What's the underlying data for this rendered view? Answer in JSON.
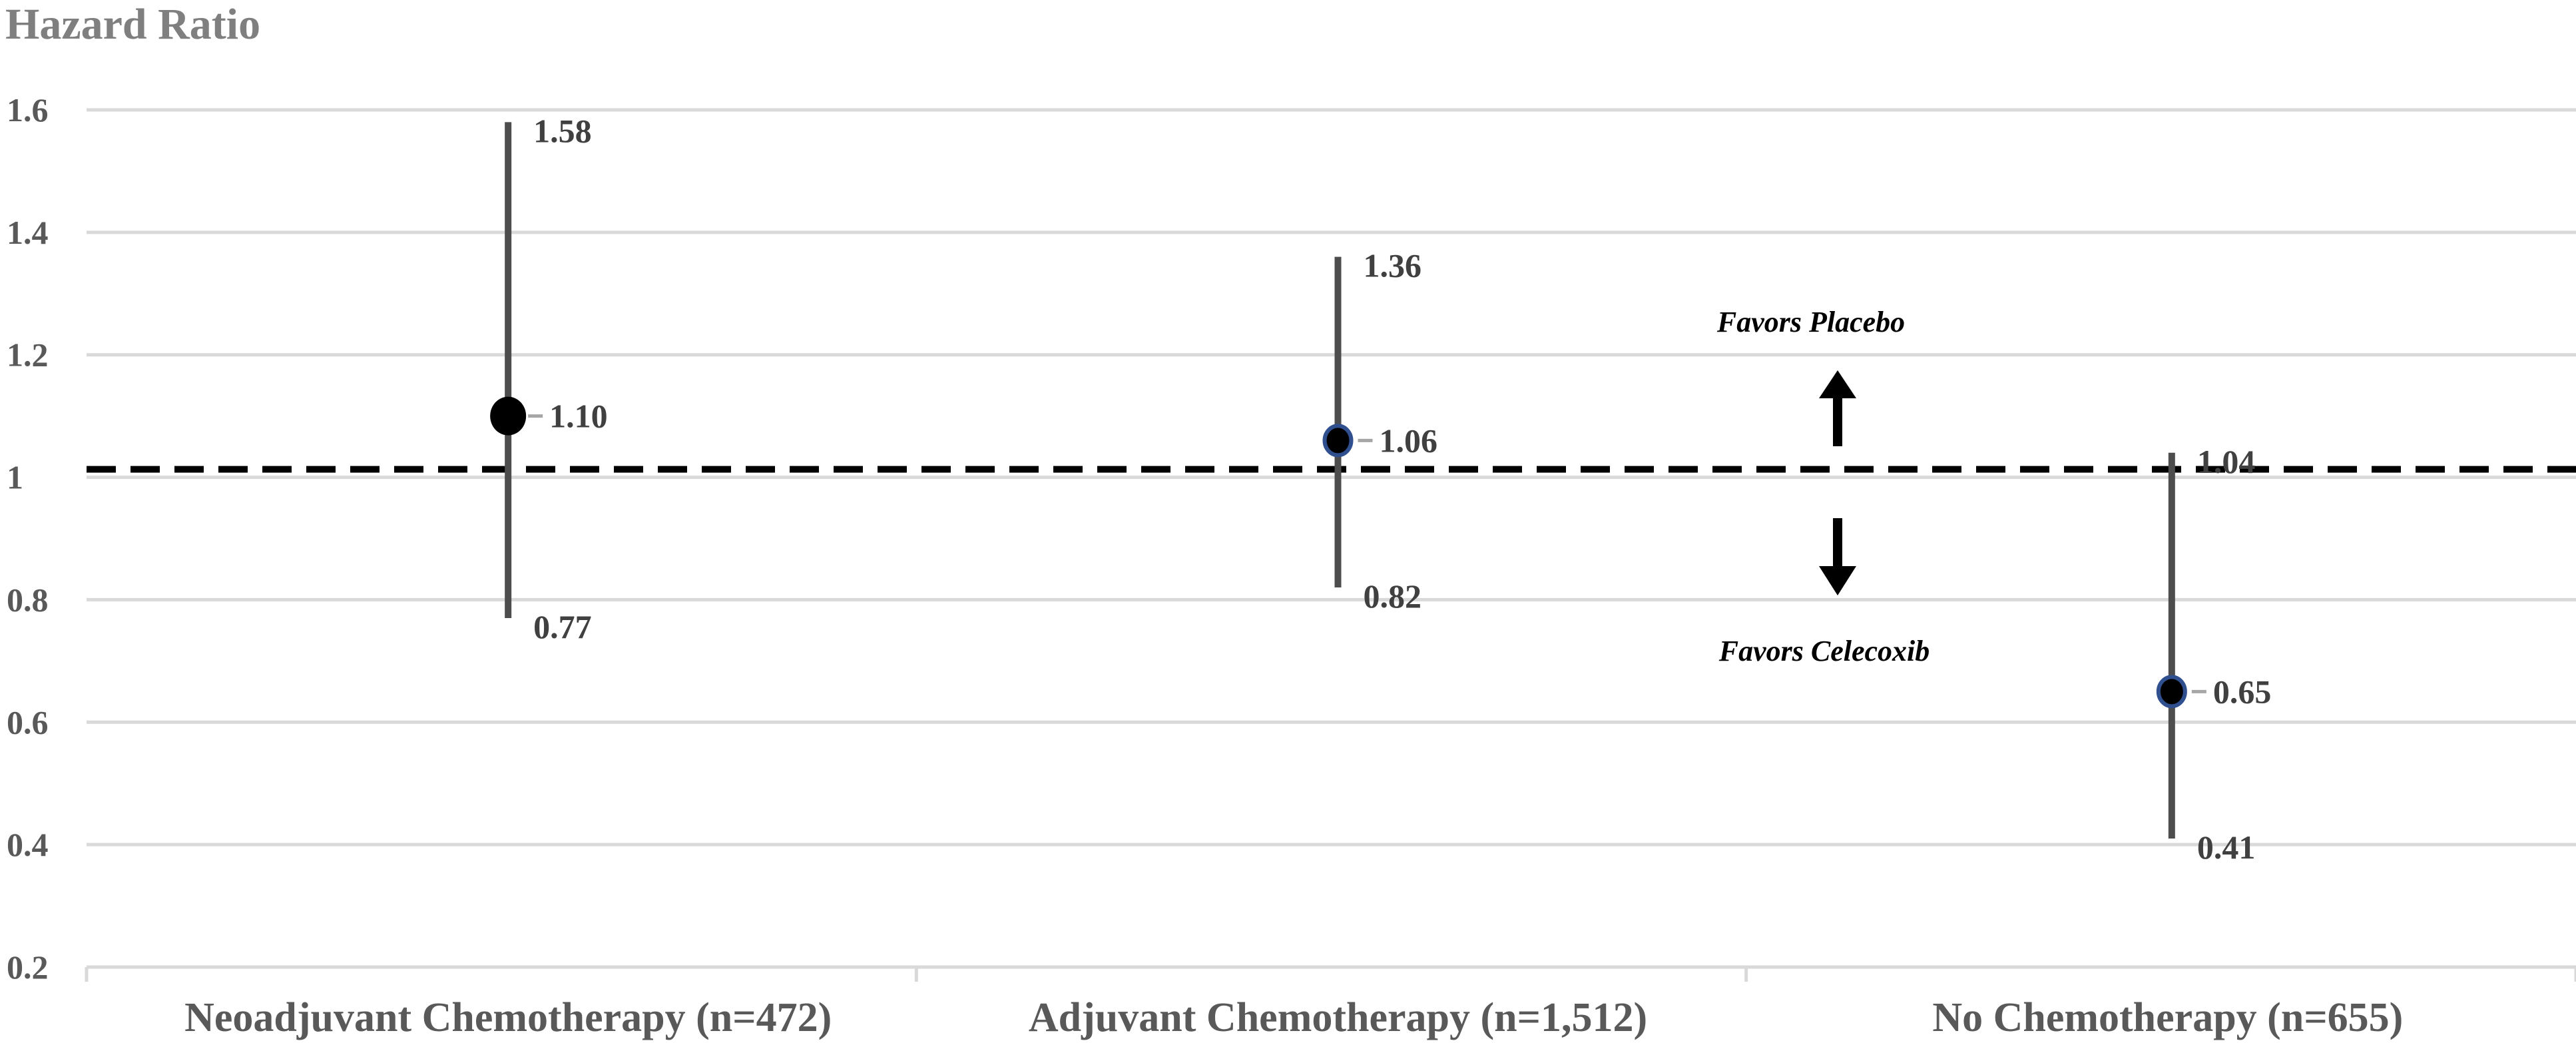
{
  "chart_data": {
    "type": "scatter",
    "title": "Hazard Ratio",
    "categories": [
      "Neoadjuvant Chemotherapy (n=472)",
      "Adjuvant Chemotherapy (n=1,512)",
      "No Chemotherapy (n=655)"
    ],
    "series": [
      {
        "values": [
          1.1,
          1.06,
          0.65
        ],
        "lower": [
          0.77,
          0.82,
          0.41
        ],
        "upper": [
          1.58,
          1.36,
          1.04
        ],
        "value_labels": [
          "1.10",
          "1.06",
          "0.65"
        ],
        "lower_labels": [
          "0.77",
          "0.82",
          "0.41"
        ],
        "upper_labels": [
          "1.58",
          "1.36",
          "1.04"
        ]
      }
    ],
    "ylim": [
      0.2,
      1.6
    ],
    "yticks": [
      0.2,
      0.4,
      0.6,
      0.8,
      1.0,
      1.2,
      1.4,
      1.6
    ],
    "ytick_labels": [
      "0.2",
      "0.4",
      "0.6",
      "0.8",
      "1",
      "1.2",
      "1.4",
      "1.6"
    ],
    "reference_line": 1.0,
    "grid": true,
    "annotations": {
      "up": "Favors Placebo",
      "down": "Favors Celecoxib"
    },
    "colors": {
      "grid": "#d9d9d9",
      "error_bar": "#4d4d4d",
      "marker": "#000000",
      "marker_outline": "#2f4f8f",
      "reference": "#000000"
    }
  }
}
